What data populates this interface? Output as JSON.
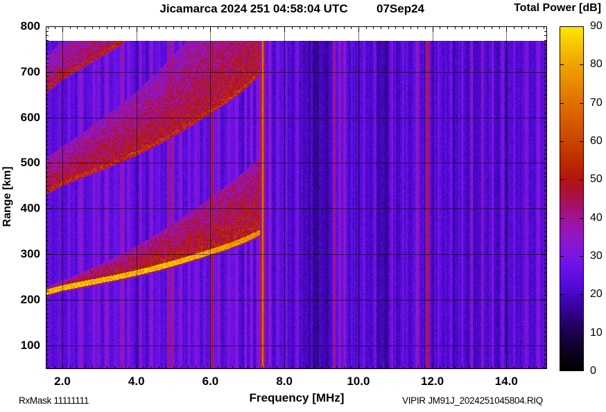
{
  "header": {
    "title": "Jicamarca 2024 251 04:58:04 UTC",
    "date": "07Sep24",
    "colorbar_title": "Total Power [dB]"
  },
  "footer": {
    "rx_mask": "RxMask 11111111",
    "xlabel": "Frequency [MHz]",
    "file": "VIPIR  JM91J_2024251045804.RIQ"
  },
  "chart_data": {
    "type": "heatmap",
    "title": "Jicamarca 2024 251 04:58:04 UTC   07Sep24",
    "xlabel": "Frequency [MHz]",
    "ylabel": "Range [km]",
    "xlim": [
      1.55,
      15.1
    ],
    "ylim": [
      48,
      800
    ],
    "grid": true,
    "x_major_step": 2,
    "x_minor_step": 0.2,
    "y_major_step": 100,
    "y_minor_step": 10,
    "x_tick_values": [
      2,
      4,
      6,
      8,
      10,
      12,
      14
    ],
    "x_tick_labels": [
      "2.0",
      "4.0",
      "6.0",
      "8.0",
      "10.0",
      "12.0",
      "14.0"
    ],
    "y_tick_values": [
      100,
      200,
      300,
      400,
      500,
      600,
      700,
      800
    ],
    "y_tick_labels": [
      "100",
      "200",
      "300",
      "400",
      "500",
      "600",
      "700",
      "800"
    ],
    "colorbar": {
      "min": 0,
      "max": 90,
      "tick_step": 10,
      "tick_values": [
        0,
        10,
        20,
        30,
        40,
        50,
        60,
        70,
        80,
        90
      ],
      "tick_labels": [
        "0",
        "10",
        "20",
        "30",
        "40",
        "50",
        "60",
        "70",
        "80",
        "90"
      ],
      "title": "Total Power [dB]"
    },
    "palette": [
      [
        0,
        [
          0,
          0,
          0
        ]
      ],
      [
        6,
        [
          16,
          0,
          40
        ]
      ],
      [
        12,
        [
          36,
          0,
          100
        ]
      ],
      [
        18,
        [
          62,
          4,
          176
        ]
      ],
      [
        22,
        [
          84,
          10,
          216
        ]
      ],
      [
        26,
        [
          104,
          16,
          230
        ]
      ],
      [
        30,
        [
          122,
          22,
          226
        ]
      ],
      [
        34,
        [
          140,
          24,
          204
        ]
      ],
      [
        38,
        [
          156,
          21,
          172
        ]
      ],
      [
        42,
        [
          165,
          18,
          120
        ]
      ],
      [
        46,
        [
          170,
          17,
          64
        ]
      ],
      [
        50,
        [
          178,
          20,
          16
        ]
      ],
      [
        55,
        [
          192,
          44,
          0
        ]
      ],
      [
        62,
        [
          208,
          78,
          0
        ]
      ],
      [
        70,
        [
          224,
          112,
          0
        ]
      ],
      [
        80,
        [
          240,
          164,
          0
        ]
      ],
      [
        90,
        [
          255,
          232,
          0
        ]
      ]
    ],
    "seed": 20240907,
    "data_max_range_km": 768,
    "background_db": {
      "base": 22.5,
      "modifiers": [
        [
          2.9,
          1.3,
          2.2
        ],
        [
          6.3,
          0.9,
          1.8
        ],
        [
          8.8,
          0.55,
          -3.5
        ],
        [
          10.7,
          0.5,
          -2.5
        ],
        [
          13.0,
          1.2,
          -1.5
        ],
        [
          14.6,
          0.5,
          1.0
        ]
      ]
    },
    "rfi_lines": [
      [
        2.18,
        0.04,
        10
      ],
      [
        2.5,
        0.05,
        11
      ],
      [
        2.86,
        0.04,
        10
      ],
      [
        3.2,
        0.04,
        9
      ],
      [
        3.62,
        0.05,
        14
      ],
      [
        3.78,
        0.04,
        12
      ],
      [
        4.12,
        0.04,
        9
      ],
      [
        4.4,
        0.04,
        10
      ],
      [
        4.62,
        0.035,
        9
      ],
      [
        4.87,
        0.04,
        20
      ],
      [
        4.98,
        0.04,
        18
      ],
      [
        5.2,
        0.04,
        10
      ],
      [
        5.42,
        0.04,
        9
      ],
      [
        5.62,
        0.04,
        11
      ],
      [
        5.85,
        0.035,
        9
      ],
      [
        6.05,
        0.035,
        26
      ],
      [
        6.22,
        0.04,
        12
      ],
      [
        6.5,
        0.04,
        9
      ],
      [
        6.72,
        0.035,
        9
      ],
      [
        6.95,
        0.04,
        10
      ],
      [
        7.12,
        0.035,
        9
      ],
      [
        7.35,
        0.1,
        10
      ],
      [
        7.42,
        0.045,
        40
      ],
      [
        7.6,
        0.04,
        12
      ],
      [
        7.82,
        0.05,
        8
      ],
      [
        8.05,
        0.04,
        8
      ],
      [
        8.35,
        0.04,
        7
      ],
      [
        9.35,
        0.045,
        18
      ],
      [
        9.5,
        0.04,
        14
      ],
      [
        9.62,
        0.04,
        10
      ],
      [
        10.15,
        0.04,
        7
      ],
      [
        10.45,
        0.04,
        8
      ],
      [
        10.9,
        0.04,
        8
      ],
      [
        11.2,
        0.04,
        8
      ],
      [
        11.6,
        0.045,
        16
      ],
      [
        11.87,
        0.04,
        30
      ],
      [
        12.18,
        0.04,
        8
      ],
      [
        12.5,
        0.04,
        7
      ],
      [
        12.8,
        0.04,
        7
      ],
      [
        13.05,
        0.04,
        8
      ],
      [
        13.35,
        0.04,
        7
      ],
      [
        13.62,
        0.04,
        8
      ],
      [
        13.9,
        0.04,
        7
      ],
      [
        14.2,
        0.04,
        8
      ],
      [
        14.55,
        0.04,
        8
      ],
      [
        14.85,
        0.04,
        8
      ]
    ],
    "echo_trace": {
      "f": [
        1.55,
        2.0,
        2.5,
        3.0,
        3.5,
        4.0,
        4.5,
        5.0,
        5.5,
        6.0,
        6.5,
        7.0,
        7.35
      ],
      "range_km": [
        210,
        220,
        228,
        236,
        244,
        253,
        263,
        274,
        286,
        299,
        312,
        328,
        342
      ],
      "fof2_cutoff_mhz": 7.35,
      "hops": 3,
      "hop_gap_km": 12,
      "core_thickness_km": 12,
      "core_db": 82,
      "diffuse_db": [
        53,
        50,
        47
      ],
      "spread": {
        "base": 18,
        "pow": 1.4,
        "scale": 13,
        "multi_hop_mult": 1.3,
        "multi_hop_add": 55
      }
    }
  }
}
